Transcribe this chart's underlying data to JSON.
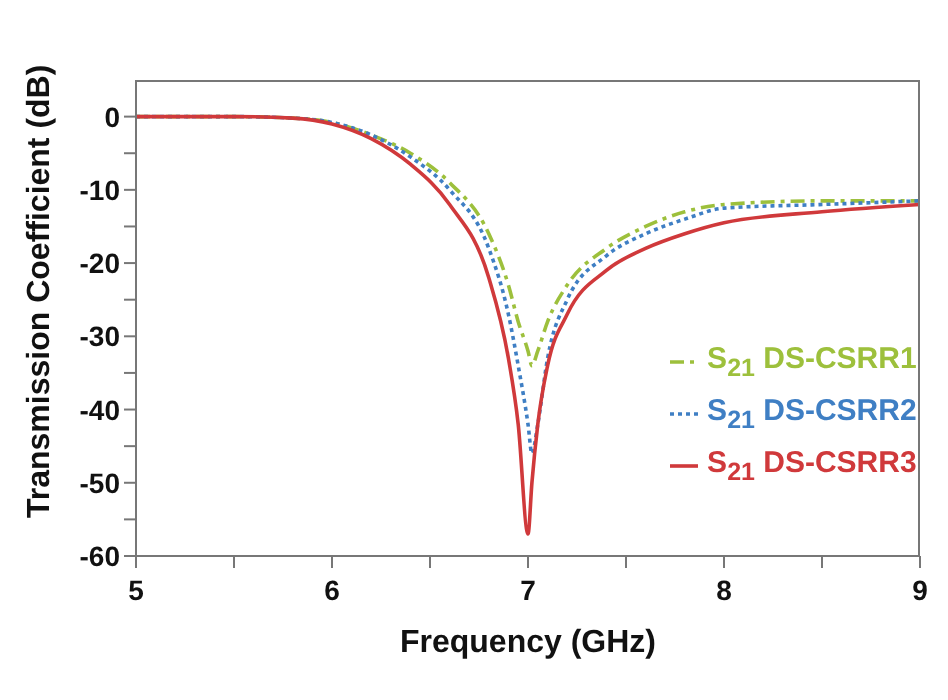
{
  "chart_data": {
    "type": "line",
    "xlabel": "Frequency (GHz)",
    "ylabel": "Transmission Coefficient (dB)",
    "x": [
      5,
      5.5,
      5.8,
      6.0,
      6.2,
      6.4,
      6.6,
      6.8,
      6.9,
      6.95,
      7.0,
      7.02,
      7.05,
      7.1,
      7.2,
      7.4,
      7.6,
      7.8,
      8.0,
      8.5,
      9.0
    ],
    "series": [
      {
        "name": "S$_{21}$ DS-CSRR1",
        "color": "#9dc03c",
        "line_style": "dashed",
        "values": [
          0,
          0,
          -0.2,
          -0.8,
          -2.5,
          -5,
          -9,
          -16,
          -23,
          -28,
          -32,
          -34,
          -32,
          -28,
          -23,
          -18,
          -15,
          -13,
          -12,
          -11.5,
          -11.5
        ]
      },
      {
        "name": "S$_{21}$ DS-CSRR2",
        "color": "#3f7fc4",
        "line_style": "dotted",
        "values": [
          0,
          0,
          -0.2,
          -0.8,
          -2.5,
          -5.5,
          -10,
          -18,
          -27,
          -34,
          -42,
          -46,
          -42,
          -33,
          -25,
          -19,
          -16,
          -14,
          -12.5,
          -12,
          -11.5
        ]
      },
      {
        "name": "S$_{21}$ DS-CSRR3",
        "color": "#d0393b",
        "line_style": "solid",
        "values": [
          0,
          0,
          -0.2,
          -1,
          -3,
          -6.5,
          -12,
          -22,
          -33,
          -42,
          -57,
          -50,
          -42,
          -34,
          -27,
          -21,
          -18,
          -16,
          -14.5,
          -13,
          -12
        ]
      }
    ],
    "xlim": [
      5,
      9
    ],
    "xticks": [
      5,
      {
        "value": 5.5,
        "label": null
      },
      6,
      {
        "value": 6.5,
        "label": null
      },
      7,
      {
        "value": 7.5,
        "label": null
      },
      8,
      {
        "value": 8.5,
        "label": null
      },
      9
    ],
    "ylim": [
      -60,
      5
    ],
    "yticks": [
      -60,
      {
        "value": -55,
        "label": null
      },
      -50,
      {
        "value": -45,
        "label": null
      },
      -40,
      {
        "value": -35,
        "label": null
      },
      -30,
      {
        "value": -25,
        "label": null
      },
      -20,
      {
        "value": -15,
        "label": null
      },
      -10,
      {
        "value": -5,
        "label": null
      },
      0
    ],
    "grid": false,
    "legend": "right",
    "marker": "none"
  }
}
